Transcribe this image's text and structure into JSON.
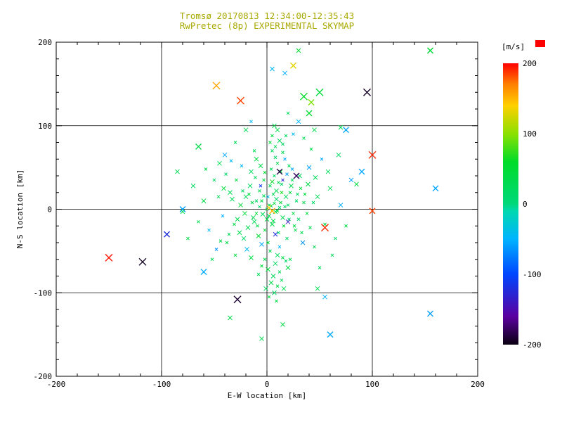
{
  "title": {
    "line1": "Tromsø 20170813 12:34:00-12:35:43",
    "line2": "RwPretec (8p) EXPERIMENTAL SKYMAP",
    "color": "#a8a800"
  },
  "axes": {
    "xlabel": "E-W location [km]",
    "ylabel": "N-S location [km]",
    "xlim": [
      -200,
      200
    ],
    "ylim": [
      -200,
      200
    ],
    "xticks": [
      -200,
      -100,
      0,
      100,
      200
    ],
    "yticks": [
      -200,
      -100,
      0,
      100,
      200
    ],
    "grid_values": [
      -100,
      0,
      100
    ],
    "minor_step": 20
  },
  "colorbar": {
    "label": "[m/s]",
    "label_color": "#ff0000",
    "ticks": [
      200,
      100,
      0,
      -100,
      -200
    ],
    "stops": [
      [
        -200,
        "#0a0010"
      ],
      [
        -160,
        "#5a00a0"
      ],
      [
        -100,
        "#0045ff"
      ],
      [
        -50,
        "#00b4ff"
      ],
      [
        -10,
        "#00d8b0"
      ],
      [
        0,
        "#00d87a"
      ],
      [
        60,
        "#00dc28"
      ],
      [
        100,
        "#8ce000"
      ],
      [
        140,
        "#ffd000"
      ],
      [
        170,
        "#ff8000"
      ],
      [
        200,
        "#ff0000"
      ]
    ]
  },
  "chart_data": {
    "type": "scatter",
    "title": "Tromsø 20170813 12:34:00-12:35:43 / RwPretec (8p) EXPERIMENTAL SKYMAP",
    "xlabel": "E-W location [km]",
    "ylabel": "N-S location [km]",
    "xlim": [
      -200,
      200
    ],
    "ylim": [
      -200,
      200
    ],
    "marker": "x",
    "value_units": "m/s",
    "points": [
      [
        2,
        5,
        30,
        2
      ],
      [
        8,
        -3,
        25,
        3
      ],
      [
        -5,
        10,
        40,
        2
      ],
      [
        12,
        2,
        15,
        2
      ],
      [
        0,
        -12,
        35,
        3
      ],
      [
        6,
        18,
        20,
        2
      ],
      [
        -10,
        -5,
        45,
        2
      ],
      [
        15,
        -10,
        30,
        3
      ],
      [
        3,
        28,
        25,
        2
      ],
      [
        -2,
        -25,
        50,
        2
      ],
      [
        9,
        12,
        10,
        3
      ],
      [
        -14,
        8,
        35,
        2
      ],
      [
        20,
        5,
        20,
        2
      ],
      [
        5,
        -18,
        40,
        3
      ],
      [
        -7,
        22,
        30,
        2
      ],
      [
        11,
        -28,
        15,
        2
      ],
      [
        18,
        15,
        25,
        3
      ],
      [
        -3,
        35,
        45,
        2
      ],
      [
        7,
        40,
        20,
        2
      ],
      [
        -12,
        -15,
        30,
        3
      ],
      [
        25,
        -5,
        35,
        2
      ],
      [
        14,
        30,
        10,
        2
      ],
      [
        -8,
        -32,
        55,
        3
      ],
      [
        4,
        48,
        25,
        2
      ],
      [
        22,
        20,
        40,
        2
      ],
      [
        -16,
        28,
        20,
        3
      ],
      [
        10,
        55,
        30,
        2
      ],
      [
        1,
        -40,
        45,
        2
      ],
      [
        -20,
        15,
        25,
        3
      ],
      [
        28,
        10,
        15,
        2
      ],
      [
        16,
        -20,
        50,
        2
      ],
      [
        -6,
        52,
        35,
        3
      ],
      [
        30,
        -12,
        20,
        2
      ],
      [
        13,
        45,
        40,
        2
      ],
      [
        -18,
        -22,
        30,
        3
      ],
      [
        24,
        35,
        25,
        2
      ],
      [
        8,
        62,
        15,
        2
      ],
      [
        -25,
        5,
        45,
        3
      ],
      [
        35,
        8,
        30,
        2
      ],
      [
        19,
        -35,
        20,
        2
      ],
      [
        -10,
        60,
        40,
        3
      ],
      [
        27,
        -25,
        35,
        2
      ],
      [
        5,
        70,
        25,
        2
      ],
      [
        -22,
        -35,
        15,
        3
      ],
      [
        32,
        25,
        50,
        2
      ],
      [
        15,
        68,
        30,
        2
      ],
      [
        -15,
        45,
        20,
        3
      ],
      [
        38,
        -5,
        40,
        2
      ],
      [
        21,
        52,
        25,
        2
      ],
      [
        -28,
        -12,
        35,
        3
      ],
      [
        3,
        -50,
        30,
        2
      ],
      [
        10,
        -55,
        25,
        3
      ],
      [
        -2,
        -60,
        40,
        2
      ],
      [
        8,
        -65,
        20,
        3
      ],
      [
        15,
        -58,
        35,
        2
      ],
      [
        1,
        -72,
        45,
        3
      ],
      [
        12,
        -75,
        30,
        2
      ],
      [
        6,
        -80,
        25,
        3
      ],
      [
        -5,
        -68,
        50,
        2
      ],
      [
        18,
        -62,
        15,
        2
      ],
      [
        4,
        -88,
        35,
        3
      ],
      [
        10,
        -92,
        40,
        2
      ],
      [
        -1,
        -95,
        25,
        3
      ],
      [
        14,
        -85,
        30,
        2
      ],
      [
        7,
        -100,
        20,
        3
      ],
      [
        2,
        -105,
        45,
        2
      ],
      [
        20,
        -70,
        35,
        3
      ],
      [
        -8,
        -78,
        25,
        2
      ],
      [
        16,
        -95,
        30,
        3
      ],
      [
        9,
        -110,
        40,
        2
      ],
      [
        8,
        75,
        30,
        2
      ],
      [
        12,
        82,
        25,
        3
      ],
      [
        5,
        88,
        40,
        2
      ],
      [
        15,
        78,
        20,
        2
      ],
      [
        10,
        95,
        35,
        3
      ],
      [
        3,
        80,
        45,
        2
      ],
      [
        18,
        88,
        15,
        2
      ],
      [
        7,
        100,
        30,
        3
      ],
      [
        -35,
        20,
        30,
        3
      ],
      [
        -42,
        -8,
        -50,
        2
      ],
      [
        48,
        15,
        25,
        3
      ],
      [
        55,
        -18,
        40,
        2
      ],
      [
        -50,
        35,
        20,
        2
      ],
      [
        40,
        50,
        -60,
        3
      ],
      [
        -38,
        -40,
        35,
        2
      ],
      [
        60,
        25,
        30,
        3
      ],
      [
        -55,
        -25,
        -45,
        2
      ],
      [
        45,
        -45,
        25,
        2
      ],
      [
        -60,
        10,
        40,
        3
      ],
      [
        52,
        60,
        -55,
        2
      ],
      [
        -45,
        55,
        30,
        3
      ],
      [
        65,
        -35,
        20,
        2
      ],
      [
        -30,
        -55,
        45,
        2
      ],
      [
        70,
        5,
        -50,
        3
      ],
      [
        -65,
        -15,
        35,
        2
      ],
      [
        58,
        45,
        25,
        3
      ],
      [
        -48,
        -48,
        -65,
        2
      ],
      [
        42,
        72,
        30,
        2
      ],
      [
        -70,
        28,
        20,
        3
      ],
      [
        75,
        -20,
        40,
        2
      ],
      [
        -40,
        65,
        -55,
        3
      ],
      [
        62,
        -55,
        25,
        2
      ],
      [
        -58,
        48,
        35,
        2
      ],
      [
        80,
        35,
        -60,
        3
      ],
      [
        -52,
        -60,
        30,
        2
      ],
      [
        68,
        65,
        20,
        3
      ],
      [
        -75,
        -35,
        40,
        2
      ],
      [
        50,
        -70,
        25,
        2
      ],
      [
        0,
        0,
        20,
        2
      ],
      [
        4,
        4,
        35,
        2
      ],
      [
        -4,
        -6,
        25,
        3
      ],
      [
        7,
        7,
        45,
        2
      ],
      [
        -7,
        3,
        15,
        2
      ],
      [
        2,
        -8,
        30,
        3
      ],
      [
        10,
        -2,
        40,
        2
      ],
      [
        -10,
        10,
        20,
        2
      ],
      [
        6,
        -14,
        35,
        3
      ],
      [
        -3,
        16,
        25,
        2
      ],
      [
        13,
        8,
        50,
        2
      ],
      [
        -13,
        -10,
        30,
        3
      ],
      [
        17,
        3,
        20,
        2
      ],
      [
        -17,
        18,
        40,
        2
      ],
      [
        9,
        22,
        25,
        3
      ],
      [
        -9,
        -20,
        35,
        2
      ],
      [
        21,
        -12,
        15,
        2
      ],
      [
        -21,
        -5,
        45,
        3
      ],
      [
        11,
        32,
        30,
        2
      ],
      [
        -11,
        38,
        20,
        2
      ],
      [
        23,
        28,
        35,
        3
      ],
      [
        -23,
        22,
        25,
        2
      ],
      [
        26,
        -20,
        40,
        2
      ],
      [
        -26,
        -28,
        30,
        3
      ],
      [
        29,
        18,
        20,
        2
      ],
      [
        -29,
        35,
        45,
        2
      ],
      [
        31,
        40,
        25,
        3
      ],
      [
        -31,
        -18,
        35,
        2
      ],
      [
        33,
        -28,
        30,
        2
      ],
      [
        -33,
        12,
        20,
        3
      ],
      [
        36,
        18,
        40,
        2
      ],
      [
        -36,
        -30,
        25,
        2
      ],
      [
        39,
        30,
        35,
        3
      ],
      [
        -39,
        42,
        15,
        2
      ],
      [
        41,
        -22,
        30,
        2
      ],
      [
        -41,
        25,
        45,
        3
      ],
      [
        44,
        8,
        20,
        2
      ],
      [
        -44,
        -38,
        35,
        2
      ],
      [
        46,
        38,
        25,
        3
      ],
      [
        -46,
        15,
        30,
        2
      ],
      [
        1,
        15,
        -45,
        2
      ],
      [
        -5,
        -42,
        -55,
        3
      ],
      [
        12,
        -45,
        -50,
        2
      ],
      [
        19,
        42,
        -60,
        2
      ],
      [
        -19,
        -48,
        -45,
        3
      ],
      [
        24,
        48,
        -55,
        2
      ],
      [
        -24,
        52,
        -50,
        2
      ],
      [
        34,
        -40,
        -65,
        3
      ],
      [
        -34,
        58,
        -45,
        2
      ],
      [
        17,
        60,
        -55,
        2
      ],
      [
        5,
        33,
        60,
        3
      ],
      [
        -2,
        44,
        55,
        2
      ],
      [
        14,
        20,
        65,
        2
      ],
      [
        -15,
        -58,
        40,
        3
      ],
      [
        22,
        -60,
        30,
        2
      ],
      [
        -12,
        70,
        25,
        2
      ],
      [
        8,
        -30,
        -120,
        3
      ],
      [
        15,
        35,
        -130,
        2
      ],
      [
        -6,
        28,
        -110,
        2
      ],
      [
        20,
        -15,
        -140,
        3
      ],
      [
        -150,
        -58,
        195,
        5
      ],
      [
        -118,
        -63,
        -195,
        5
      ],
      [
        -28,
        -108,
        -190,
        5
      ],
      [
        95,
        140,
        -195,
        5
      ],
      [
        -25,
        130,
        185,
        5
      ],
      [
        -48,
        148,
        155,
        5
      ],
      [
        55,
        -22,
        190,
        5
      ],
      [
        100,
        65,
        190,
        5
      ],
      [
        100,
        -2,
        185,
        4
      ],
      [
        160,
        25,
        -55,
        4
      ],
      [
        155,
        -125,
        -60,
        4
      ],
      [
        25,
        172,
        130,
        4
      ],
      [
        35,
        135,
        60,
        5
      ],
      [
        50,
        140,
        45,
        5
      ],
      [
        155,
        190,
        50,
        4
      ],
      [
        12,
        45,
        -185,
        4
      ],
      [
        28,
        40,
        -180,
        4
      ],
      [
        75,
        95,
        -55,
        4
      ],
      [
        90,
        45,
        -55,
        4
      ],
      [
        -80,
        0,
        -60,
        4
      ],
      [
        -95,
        -30,
        -120,
        4
      ],
      [
        5,
        -2,
        150,
        4
      ],
      [
        2,
        2,
        140,
        3
      ],
      [
        40,
        115,
        55,
        4
      ],
      [
        -65,
        75,
        35,
        4
      ],
      [
        60,
        -150,
        -55,
        4
      ],
      [
        -60,
        -75,
        -55,
        4
      ],
      [
        42,
        128,
        95,
        4
      ],
      [
        17,
        163,
        -50,
        3
      ],
      [
        30,
        190,
        55,
        3
      ],
      [
        5,
        168,
        -45,
        3
      ],
      [
        -35,
        -130,
        35,
        3
      ],
      [
        15,
        -138,
        35,
        3
      ],
      [
        -5,
        -155,
        30,
        3
      ],
      [
        48,
        -95,
        30,
        3
      ],
      [
        55,
        -105,
        -50,
        3
      ],
      [
        -80,
        -3,
        35,
        3
      ],
      [
        85,
        30,
        40,
        3
      ],
      [
        70,
        98,
        30,
        3
      ],
      [
        -85,
        45,
        25,
        3
      ],
      [
        30,
        105,
        -50,
        3
      ],
      [
        -20,
        95,
        30,
        3
      ],
      [
        25,
        90,
        -45,
        2
      ],
      [
        35,
        85,
        30,
        2
      ],
      [
        -30,
        80,
        25,
        2
      ],
      [
        45,
        95,
        35,
        3
      ],
      [
        20,
        115,
        25,
        2
      ],
      [
        -15,
        105,
        -45,
        2
      ]
    ]
  }
}
